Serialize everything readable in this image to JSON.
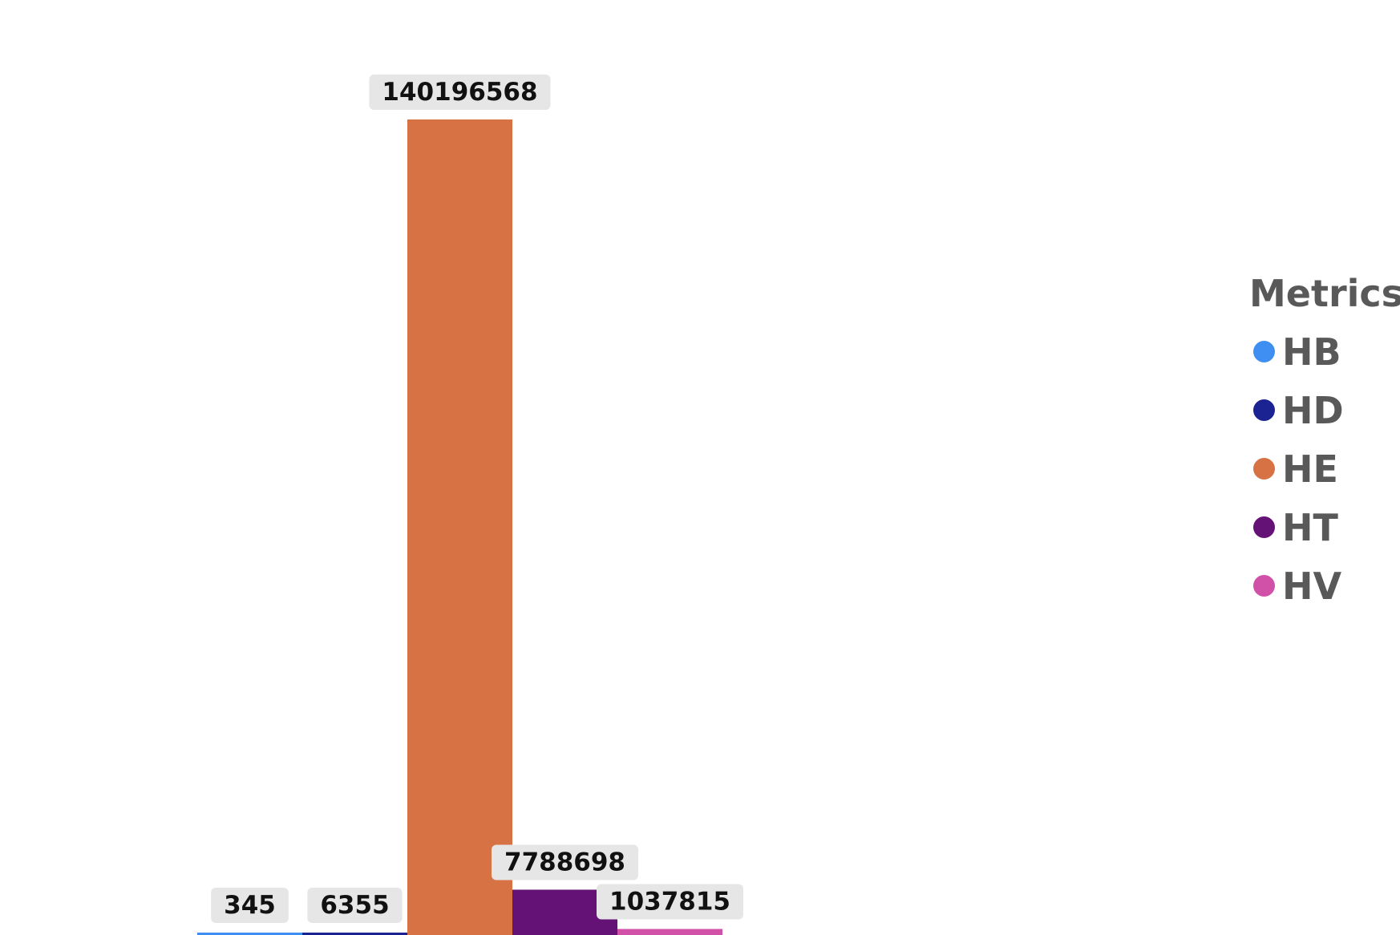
{
  "chart_data": {
    "type": "bar",
    "categories": [
      "HB",
      "HD",
      "HE",
      "HT",
      "HV"
    ],
    "values": [
      345,
      6355,
      140196568,
      7788698,
      1037815
    ],
    "data_labels": [
      "345",
      "6355",
      "140196568",
      "7788698",
      "1037815"
    ],
    "colors": [
      "#3f8ff2",
      "#1b2393",
      "#d77245",
      "#651276",
      "#d251a8"
    ],
    "ylim": [
      0,
      140196568
    ],
    "grid": false,
    "legend_position": "right",
    "legend_title": "Metrics",
    "legend_items": [
      {
        "label": "HB",
        "color": "#3f8ff2"
      },
      {
        "label": "HD",
        "color": "#1b2393"
      },
      {
        "label": "HE",
        "color": "#d77245"
      },
      {
        "label": "HT",
        "color": "#651276"
      },
      {
        "label": "HV",
        "color": "#d251a8"
      }
    ]
  },
  "label_box_color": "#e6e6e6"
}
